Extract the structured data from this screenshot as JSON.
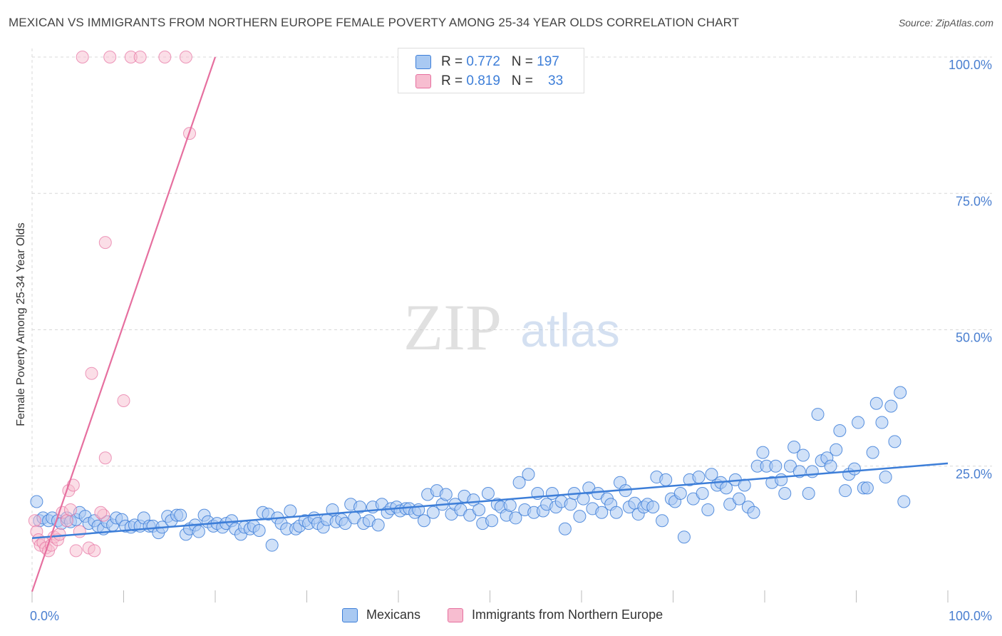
{
  "title": "MEXICAN VS IMMIGRANTS FROM NORTHERN EUROPE FEMALE POVERTY AMONG 25-34 YEAR OLDS CORRELATION CHART",
  "source": "Source: ZipAtlas.com",
  "watermark": {
    "zip": "ZIP",
    "atlas": "atlas"
  },
  "colors": {
    "blue": "#3d7ed8",
    "blue_fill": "#a9c9f2",
    "pink": "#e66f9f",
    "pink_fill": "#f7bdd0",
    "grid": "#d8d8d8",
    "axis_text": "#4a7fd0"
  },
  "legend": {
    "rows": [
      {
        "r_label": "R =",
        "r_value": "0.772",
        "n_label": "N =",
        "n_value": "197"
      },
      {
        "r_label": "R =",
        "r_value": "0.819",
        "n_label": "N =",
        "n_value": "33"
      }
    ]
  },
  "bottom_legend": {
    "mexicans": "Mexicans",
    "immigrants": "Immigrants from Northern Europe"
  },
  "chart_data": {
    "type": "scatter",
    "ylabel": "Female Poverty Among 25-34 Year Olds",
    "xlabel": "",
    "xlim": [
      0,
      100
    ],
    "ylim": [
      0,
      100
    ],
    "x_tick_labels": [
      "0.0%",
      "100.0%"
    ],
    "y_tick_labels": [
      "25.0%",
      "50.0%",
      "75.0%",
      "100.0%"
    ],
    "y_ticks": [
      25,
      50,
      75,
      100
    ],
    "series": [
      {
        "name": "Mexicans",
        "r": 0.772,
        "n": 197,
        "trend": {
          "x": [
            0,
            100
          ],
          "y": [
            11.8,
            25.5
          ]
        },
        "points": [
          [
            0.5,
            18.5
          ],
          [
            0.8,
            15
          ],
          [
            1.2,
            15.5
          ],
          [
            1.8,
            15
          ],
          [
            2.2,
            15.5
          ],
          [
            2.8,
            15
          ],
          [
            3.2,
            14.5
          ],
          [
            3.8,
            15.5
          ],
          [
            4.2,
            14.8
          ],
          [
            4.8,
            15.2
          ],
          [
            5.2,
            16.5
          ],
          [
            5.8,
            15.8
          ],
          [
            6.2,
            14.5
          ],
          [
            6.8,
            15
          ],
          [
            7.2,
            14
          ],
          [
            7.8,
            13.5
          ],
          [
            8.2,
            14.8
          ],
          [
            8.8,
            14.2
          ],
          [
            9.2,
            15.5
          ],
          [
            9.8,
            15.2
          ],
          [
            10.2,
            14
          ],
          [
            10.8,
            13.8
          ],
          [
            11.2,
            14.2
          ],
          [
            11.8,
            14
          ],
          [
            12.2,
            15.5
          ],
          [
            12.8,
            14
          ],
          [
            13.2,
            14
          ],
          [
            13.8,
            12.8
          ],
          [
            14.2,
            13.8
          ],
          [
            14.8,
            15.8
          ],
          [
            15.2,
            15
          ],
          [
            15.8,
            16
          ],
          [
            16.2,
            16
          ],
          [
            16.8,
            12.5
          ],
          [
            17.2,
            13.5
          ],
          [
            17.8,
            14.2
          ],
          [
            18.2,
            13
          ],
          [
            18.8,
            16
          ],
          [
            19.2,
            14.8
          ],
          [
            19.8,
            14
          ],
          [
            20.2,
            14.5
          ],
          [
            20.8,
            13.8
          ],
          [
            21.2,
            14.5
          ],
          [
            21.8,
            15
          ],
          [
            22.2,
            13.5
          ],
          [
            22.8,
            12.5
          ],
          [
            23.2,
            13.8
          ],
          [
            23.8,
            13.5
          ],
          [
            24.2,
            14
          ],
          [
            24.8,
            13.2
          ],
          [
            25.2,
            16.5
          ],
          [
            25.8,
            16.2
          ],
          [
            26.2,
            10.5
          ],
          [
            26.8,
            15.5
          ],
          [
            27.2,
            14.5
          ],
          [
            27.8,
            13.5
          ],
          [
            28.2,
            16.8
          ],
          [
            28.8,
            13.5
          ],
          [
            29.2,
            14
          ],
          [
            29.8,
            15
          ],
          [
            30.2,
            14.5
          ],
          [
            30.8,
            15.5
          ],
          [
            31.2,
            14.5
          ],
          [
            31.8,
            13.8
          ],
          [
            32.2,
            15.2
          ],
          [
            32.8,
            17
          ],
          [
            33.2,
            14.8
          ],
          [
            33.8,
            15.2
          ],
          [
            34.2,
            14.5
          ],
          [
            34.8,
            18
          ],
          [
            35.2,
            15.5
          ],
          [
            35.8,
            17.5
          ],
          [
            36.2,
            14.5
          ],
          [
            36.8,
            15
          ],
          [
            37.2,
            17.5
          ],
          [
            37.8,
            14.2
          ],
          [
            38.2,
            18
          ],
          [
            38.8,
            16.5
          ],
          [
            39.2,
            17.2
          ],
          [
            39.8,
            17.5
          ],
          [
            40.2,
            16.8
          ],
          [
            40.8,
            17.2
          ],
          [
            41.2,
            17.2
          ],
          [
            41.8,
            16.5
          ],
          [
            42.2,
            17
          ],
          [
            42.8,
            15
          ],
          [
            43.2,
            19.8
          ],
          [
            43.8,
            16.5
          ],
          [
            44.2,
            20.5
          ],
          [
            44.8,
            18
          ],
          [
            45.2,
            19.8
          ],
          [
            45.8,
            16.2
          ],
          [
            46.2,
            18
          ],
          [
            46.8,
            17
          ],
          [
            47.2,
            19.5
          ],
          [
            47.8,
            16
          ],
          [
            48.2,
            18.8
          ],
          [
            48.8,
            17
          ],
          [
            49.2,
            14.5
          ],
          [
            49.8,
            20
          ],
          [
            50.2,
            15
          ],
          [
            50.8,
            18
          ],
          [
            51.2,
            17.5
          ],
          [
            51.8,
            16
          ],
          [
            52.2,
            17.8
          ],
          [
            52.8,
            15.5
          ],
          [
            53.2,
            22
          ],
          [
            53.8,
            17
          ],
          [
            54.2,
            23.5
          ],
          [
            54.8,
            16.5
          ],
          [
            55.2,
            20
          ],
          [
            55.8,
            16.8
          ],
          [
            56.2,
            18
          ],
          [
            56.8,
            20
          ],
          [
            57.2,
            17.5
          ],
          [
            57.8,
            18.5
          ],
          [
            58.2,
            13.5
          ],
          [
            58.8,
            18
          ],
          [
            59.2,
            20
          ],
          [
            59.8,
            15.8
          ],
          [
            60.2,
            19
          ],
          [
            60.8,
            21
          ],
          [
            61.2,
            17.2
          ],
          [
            61.8,
            20
          ],
          [
            62.2,
            16.5
          ],
          [
            62.8,
            19
          ],
          [
            63.2,
            18
          ],
          [
            63.8,
            16.5
          ],
          [
            64.2,
            22
          ],
          [
            64.8,
            20.5
          ],
          [
            65.2,
            17.5
          ],
          [
            65.8,
            18.2
          ],
          [
            66.2,
            16.2
          ],
          [
            66.8,
            17.5
          ],
          [
            67.2,
            18
          ],
          [
            67.8,
            17.5
          ],
          [
            68.2,
            23
          ],
          [
            68.8,
            15
          ],
          [
            69.2,
            22.5
          ],
          [
            69.8,
            19
          ],
          [
            70.2,
            18.5
          ],
          [
            70.8,
            20
          ],
          [
            71.2,
            12
          ],
          [
            71.8,
            22.5
          ],
          [
            72.2,
            19
          ],
          [
            72.8,
            23
          ],
          [
            73.2,
            20
          ],
          [
            73.8,
            17
          ],
          [
            74.2,
            23.5
          ],
          [
            74.8,
            21.5
          ],
          [
            75.2,
            22
          ],
          [
            75.8,
            21
          ],
          [
            76.2,
            18
          ],
          [
            76.8,
            22.5
          ],
          [
            77.2,
            19
          ],
          [
            77.8,
            21.5
          ],
          [
            78.2,
            17.5
          ],
          [
            78.8,
            16.5
          ],
          [
            79.2,
            25
          ],
          [
            79.8,
            27.5
          ],
          [
            80.2,
            25
          ],
          [
            80.8,
            22
          ],
          [
            81.2,
            25
          ],
          [
            81.8,
            22.5
          ],
          [
            82.2,
            20
          ],
          [
            82.8,
            25
          ],
          [
            83.2,
            28.5
          ],
          [
            83.8,
            24
          ],
          [
            84.2,
            27
          ],
          [
            84.8,
            20
          ],
          [
            85.2,
            24
          ],
          [
            85.8,
            34.5
          ],
          [
            86.2,
            26
          ],
          [
            86.8,
            26.5
          ],
          [
            87.2,
            25
          ],
          [
            87.8,
            28
          ],
          [
            88.2,
            31.5
          ],
          [
            88.8,
            20.5
          ],
          [
            89.2,
            23.5
          ],
          [
            89.8,
            24.5
          ],
          [
            90.2,
            33
          ],
          [
            90.8,
            21
          ],
          [
            91.2,
            21
          ],
          [
            91.8,
            27.5
          ],
          [
            92.2,
            36.5
          ],
          [
            92.8,
            33
          ],
          [
            93.2,
            23
          ],
          [
            93.8,
            36
          ],
          [
            94.2,
            29.5
          ],
          [
            94.8,
            38.5
          ],
          [
            95.2,
            18.5
          ]
        ]
      },
      {
        "name": "Immigrants from Northern Europe",
        "r": 0.819,
        "n": 33,
        "trend": {
          "x": [
            0,
            20
          ],
          "y": [
            2,
            100
          ]
        },
        "points": [
          [
            0.3,
            15
          ],
          [
            0.5,
            13
          ],
          [
            0.7,
            11.5
          ],
          [
            0.9,
            10.5
          ],
          [
            1.2,
            11
          ],
          [
            1.5,
            10
          ],
          [
            1.8,
            9.5
          ],
          [
            2.1,
            10.5
          ],
          [
            2.4,
            12
          ],
          [
            2.8,
            11.5
          ],
          [
            3,
            12.5
          ],
          [
            3.3,
            16.5
          ],
          [
            3.8,
            15
          ],
          [
            4,
            20.5
          ],
          [
            4.2,
            17
          ],
          [
            4.5,
            21.5
          ],
          [
            4.8,
            9.5
          ],
          [
            5.2,
            13
          ],
          [
            6.2,
            10
          ],
          [
            6.5,
            42
          ],
          [
            6.8,
            9.5
          ],
          [
            7.8,
            16
          ],
          [
            7.5,
            16.5
          ],
          [
            8,
            26.5
          ],
          [
            8,
            66
          ],
          [
            10,
            37
          ],
          [
            5.5,
            100
          ],
          [
            10.8,
            100
          ],
          [
            11.8,
            100
          ],
          [
            14.5,
            100
          ],
          [
            16.8,
            100
          ],
          [
            17.2,
            86
          ],
          [
            8.5,
            100
          ]
        ]
      }
    ]
  }
}
